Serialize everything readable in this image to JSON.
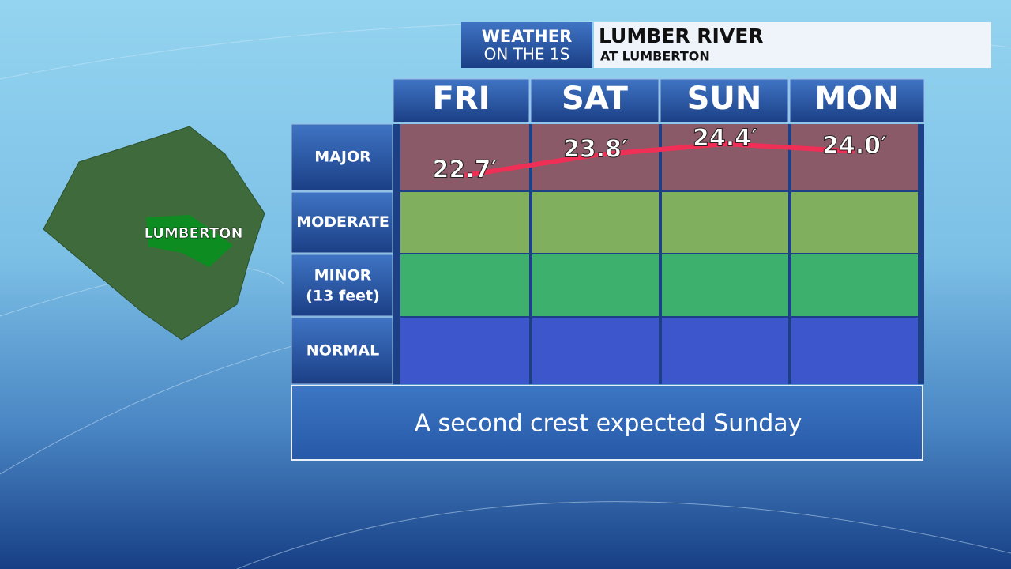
{
  "header": {
    "brand_line1": "WEATHER",
    "brand_line2": "ON THE 1S",
    "title": "LUMBER RIVER",
    "subtitle": "AT LUMBERTON"
  },
  "map": {
    "label": "LUMBERTON"
  },
  "chart_data": {
    "type": "line",
    "categories": [
      "FRI",
      "SAT",
      "SUN",
      "MON"
    ],
    "values": [
      22.7,
      23.8,
      24.4,
      24.0
    ],
    "value_labels": [
      "22.7′",
      "23.8′",
      "24.4′",
      "24.0′"
    ],
    "color": "#ef2f55",
    "bands": [
      {
        "label": "MAJOR",
        "color": "#8b5a68"
      },
      {
        "label": "MODERATE",
        "color": "#80b05e"
      },
      {
        "label": "MINOR",
        "sublabel": "(13 feet)",
        "color": "#3cb06c"
      },
      {
        "label": "NORMAL",
        "color": "#3d56cb"
      }
    ],
    "note": "A second crest expected Sunday"
  }
}
